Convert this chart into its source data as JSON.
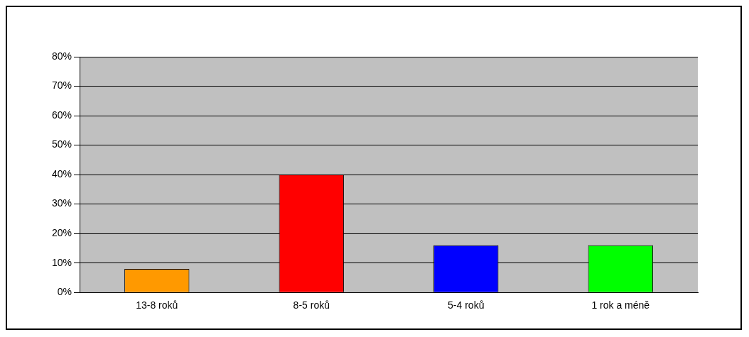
{
  "chart_data": {
    "type": "bar",
    "categories": [
      "13-8 roků",
      "8-5 roků",
      "5-4 roků",
      "1 rok a méně"
    ],
    "values": [
      8,
      40,
      16,
      16
    ],
    "colors": [
      "#ff9900",
      "#ff0000",
      "#0000ff",
      "#00ff00"
    ],
    "ylim": [
      0,
      80
    ],
    "yticks": [
      {
        "value": 0,
        "label": "0%"
      },
      {
        "value": 10,
        "label": "10%"
      },
      {
        "value": 20,
        "label": "20%"
      },
      {
        "value": 30,
        "label": "30%"
      },
      {
        "value": 40,
        "label": "40%"
      },
      {
        "value": 50,
        "label": "50%"
      },
      {
        "value": 60,
        "label": "60%"
      },
      {
        "value": 70,
        "label": "70%"
      },
      {
        "value": 80,
        "label": "80%"
      }
    ],
    "grid": "y",
    "legend": false
  }
}
